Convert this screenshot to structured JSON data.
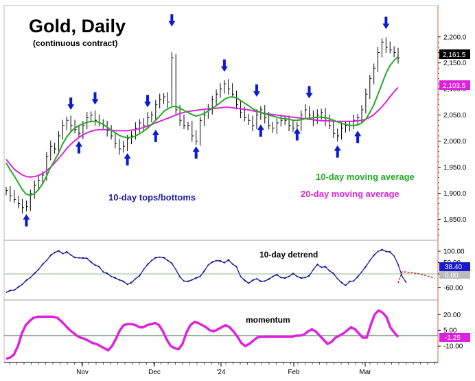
{
  "chart_data": {
    "type": "line",
    "title": "Gold, Daily",
    "subtitle": "(continuous contract)",
    "x_tick_labels": [
      "Nov",
      "Dec",
      "'24",
      "Feb",
      "Mar"
    ],
    "annotations": {
      "tops_bottoms": "10-day tops/bottoms",
      "ma10_label": "10-day moving average",
      "ma20_label": "20-day moving average",
      "detrend_label": "10-day detrend",
      "momentum_label": "momentum"
    },
    "colors": {
      "price": "#000000",
      "ma10": "#22aa22",
      "ma20": "#dd22dd",
      "arrows": "#0a1ad0",
      "detrend_dashed": "#cc0000",
      "momentum": "#dd22dd",
      "tops_bottoms_text": "#1a1aa0",
      "ma10_text": "#22aa22",
      "ma20_text": "#dd22dd"
    },
    "main_panel": {
      "y_ticks": [
        "2,200.0",
        "2,150.0",
        "2,100.0",
        "2,050.0",
        "2,000.0",
        "1,950.0",
        "1,900.0",
        "1,850.0"
      ],
      "ylim": [
        1815,
        2255
      ],
      "last_price_label": "2,161.5",
      "ma20_value_label": "2,103.5",
      "close": [
        1905,
        1895,
        1888,
        1880,
        1872,
        1875,
        1900,
        1915,
        1925,
        1935,
        1970,
        1990,
        1985,
        2010,
        2030,
        2040,
        2030,
        2022,
        2015,
        2030,
        2045,
        2050,
        2040,
        2035,
        2030,
        2020,
        2010,
        1995,
        1985,
        1990,
        2005,
        2010,
        2025,
        2035,
        2030,
        2045,
        2050,
        2070,
        2080,
        2085,
        2075,
        2160,
        2060,
        2040,
        2030,
        2030,
        2010,
        2000,
        2040,
        2050,
        2060,
        2080,
        2090,
        2100,
        2110,
        2100,
        2090,
        2070,
        2055,
        2045,
        2040,
        2030,
        2050,
        2060,
        2045,
        2030,
        2025,
        2035,
        2040,
        2040,
        2030,
        2025,
        2030,
        2050,
        2060,
        2050,
        2040,
        2050,
        2055,
        2040,
        2030,
        2015,
        2010,
        2025,
        2030,
        2030,
        2040,
        2045,
        2060,
        2090,
        2120,
        2140,
        2170,
        2190,
        2180,
        2175,
        2170,
        2160
      ],
      "ma10": [
        1958,
        1945,
        1933,
        1920,
        1907,
        1898,
        1896,
        1899,
        1907,
        1918,
        1933,
        1950,
        1963,
        1978,
        1995,
        2008,
        2018,
        2025,
        2030,
        2033,
        2036,
        2038,
        2038,
        2036,
        2032,
        2027,
        2021,
        2016,
        2011,
        2008,
        2007,
        2007,
        2010,
        2014,
        2019,
        2025,
        2032,
        2040,
        2048,
        2057,
        2062,
        2066,
        2067,
        2063,
        2059,
        2055,
        2051,
        2048,
        2050,
        2053,
        2058,
        2063,
        2068,
        2074,
        2080,
        2084,
        2085,
        2083,
        2078,
        2073,
        2068,
        2062,
        2058,
        2055,
        2052,
        2050,
        2048,
        2046,
        2044,
        2043,
        2042,
        2040,
        2040,
        2041,
        2043,
        2044,
        2045,
        2046,
        2046,
        2045,
        2043,
        2040,
        2037,
        2034,
        2032,
        2030,
        2030,
        2031,
        2035,
        2042,
        2055,
        2070,
        2090,
        2110,
        2130,
        2145,
        2155,
        2162
      ],
      "ma20": [
        1965,
        1955,
        1946,
        1940,
        1935,
        1932,
        1931,
        1932,
        1934,
        1938,
        1943,
        1950,
        1958,
        1967,
        1976,
        1986,
        1994,
        2001,
        2007,
        2012,
        2016,
        2019,
        2021,
        2022,
        2022,
        2022,
        2021,
        2020,
        2020,
        2020,
        2020,
        2021,
        2022,
        2024,
        2026,
        2029,
        2032,
        2035,
        2038,
        2041,
        2044,
        2047,
        2050,
        2053,
        2055,
        2057,
        2058,
        2059,
        2060,
        2061,
        2062,
        2063,
        2063,
        2064,
        2065,
        2065,
        2064,
        2063,
        2062,
        2061,
        2060,
        2058,
        2057,
        2055,
        2053,
        2052,
        2051,
        2050,
        2049,
        2048,
        2047,
        2046,
        2045,
        2044,
        2043,
        2042,
        2041,
        2040,
        2039,
        2039,
        2039,
        2038,
        2038,
        2038,
        2038,
        2038,
        2038,
        2039,
        2040,
        2042,
        2046,
        2051,
        2058,
        2066,
        2075,
        2085,
        2095,
        2103
      ]
    },
    "detrend_panel": {
      "y_ticks": [
        "100.00",
        "50.00",
        "0.00",
        "-60.00"
      ],
      "ylim": [
        -100,
        130
      ],
      "last_value_label": "38.40",
      "last_value_label2": "0.00",
      "values": [
        -80,
        -75,
        -70,
        -60,
        -45,
        -30,
        -15,
        0,
        20,
        40,
        60,
        80,
        95,
        100,
        90,
        95,
        85,
        70,
        72,
        68,
        70,
        50,
        40,
        30,
        10,
        0,
        -10,
        -20,
        -25,
        -35,
        -45,
        -40,
        -20,
        -10,
        20,
        40,
        60,
        70,
        75,
        70,
        60,
        45,
        20,
        -15,
        -30,
        -35,
        -25,
        -20,
        -10,
        10,
        40,
        50,
        60,
        55,
        50,
        60,
        45,
        30,
        -10,
        -30,
        -40,
        -30,
        -20,
        -35,
        -30,
        -25,
        -10,
        -5,
        -15,
        -20,
        -10,
        0,
        -10,
        -20,
        -15,
        -10,
        20,
        40,
        30,
        30,
        15,
        0,
        -20,
        -40,
        -50,
        -35,
        -30,
        -15,
        10,
        30,
        60,
        80,
        100,
        105,
        100,
        95,
        80,
        40,
        -10,
        -40
      ]
    },
    "momentum_panel": {
      "y_ticks": [
        "20.00",
        "5.00",
        "-10.00"
      ],
      "ylim": [
        -23,
        32
      ],
      "last_value_label": "-1.25",
      "values": [
        -22,
        -21,
        -18,
        -10,
        2,
        10,
        14,
        17,
        18,
        18,
        18,
        18,
        18,
        17,
        14,
        10,
        6,
        3,
        0,
        -2,
        -3,
        -5,
        -7,
        -8,
        -10,
        -12,
        -14,
        -10,
        -3,
        5,
        10,
        11,
        11,
        10,
        8,
        8,
        10,
        11,
        12,
        10,
        4,
        -4,
        -10,
        -12,
        -13,
        -8,
        3,
        10,
        13,
        12,
        10,
        8,
        5,
        4,
        6,
        8,
        10,
        8,
        4,
        -1,
        -7,
        -10,
        -8,
        -5,
        -2,
        -1,
        -1,
        -1,
        -1,
        -1,
        -1,
        -1,
        -1,
        -1,
        0,
        0,
        1,
        4,
        6,
        4,
        0,
        -4,
        -8,
        -6,
        -2,
        0,
        2,
        5,
        8,
        6,
        2,
        -2,
        -2,
        10,
        20,
        24,
        22,
        18,
        8,
        3,
        -1.25
      ],
      "reference_line": 0
    },
    "arrows_down": [
      {
        "i": 16,
        "v": 2060
      },
      {
        "i": 22,
        "v": 2070
      },
      {
        "i": 41,
        "v": 2220
      },
      {
        "i": 35,
        "v": 2065
      },
      {
        "i": 54,
        "v": 2133
      },
      {
        "i": 62,
        "v": 2085
      },
      {
        "i": 75,
        "v": 2082
      },
      {
        "i": 94,
        "v": 2215
      }
    ],
    "arrows_up": [
      {
        "i": 5,
        "v": 1860
      },
      {
        "i": 18,
        "v": 2000
      },
      {
        "i": 30,
        "v": 1977
      },
      {
        "i": 37,
        "v": 2022
      },
      {
        "i": 47,
        "v": 1990
      },
      {
        "i": 63,
        "v": 2032
      },
      {
        "i": 72,
        "v": 2025
      },
      {
        "i": 82,
        "v": 1992
      },
      {
        "i": 87,
        "v": 2020
      }
    ]
  }
}
